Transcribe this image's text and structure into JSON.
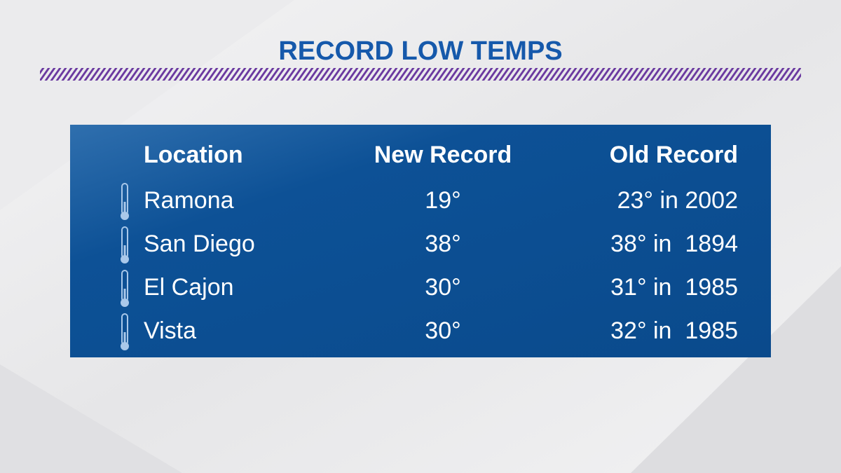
{
  "header": {
    "title": "RECORD LOW TEMPS"
  },
  "table": {
    "columns": [
      "Location",
      "New Record",
      "Old Record"
    ],
    "rows": [
      [
        "Ramona",
        "19°",
        "23° in 2002"
      ],
      [
        "San Diego",
        "38°",
        "38° in  1894"
      ],
      [
        "El Cajon",
        "30°",
        "31° in  1985"
      ],
      [
        "Vista",
        "30°",
        "32° in  1985"
      ]
    ]
  }
}
